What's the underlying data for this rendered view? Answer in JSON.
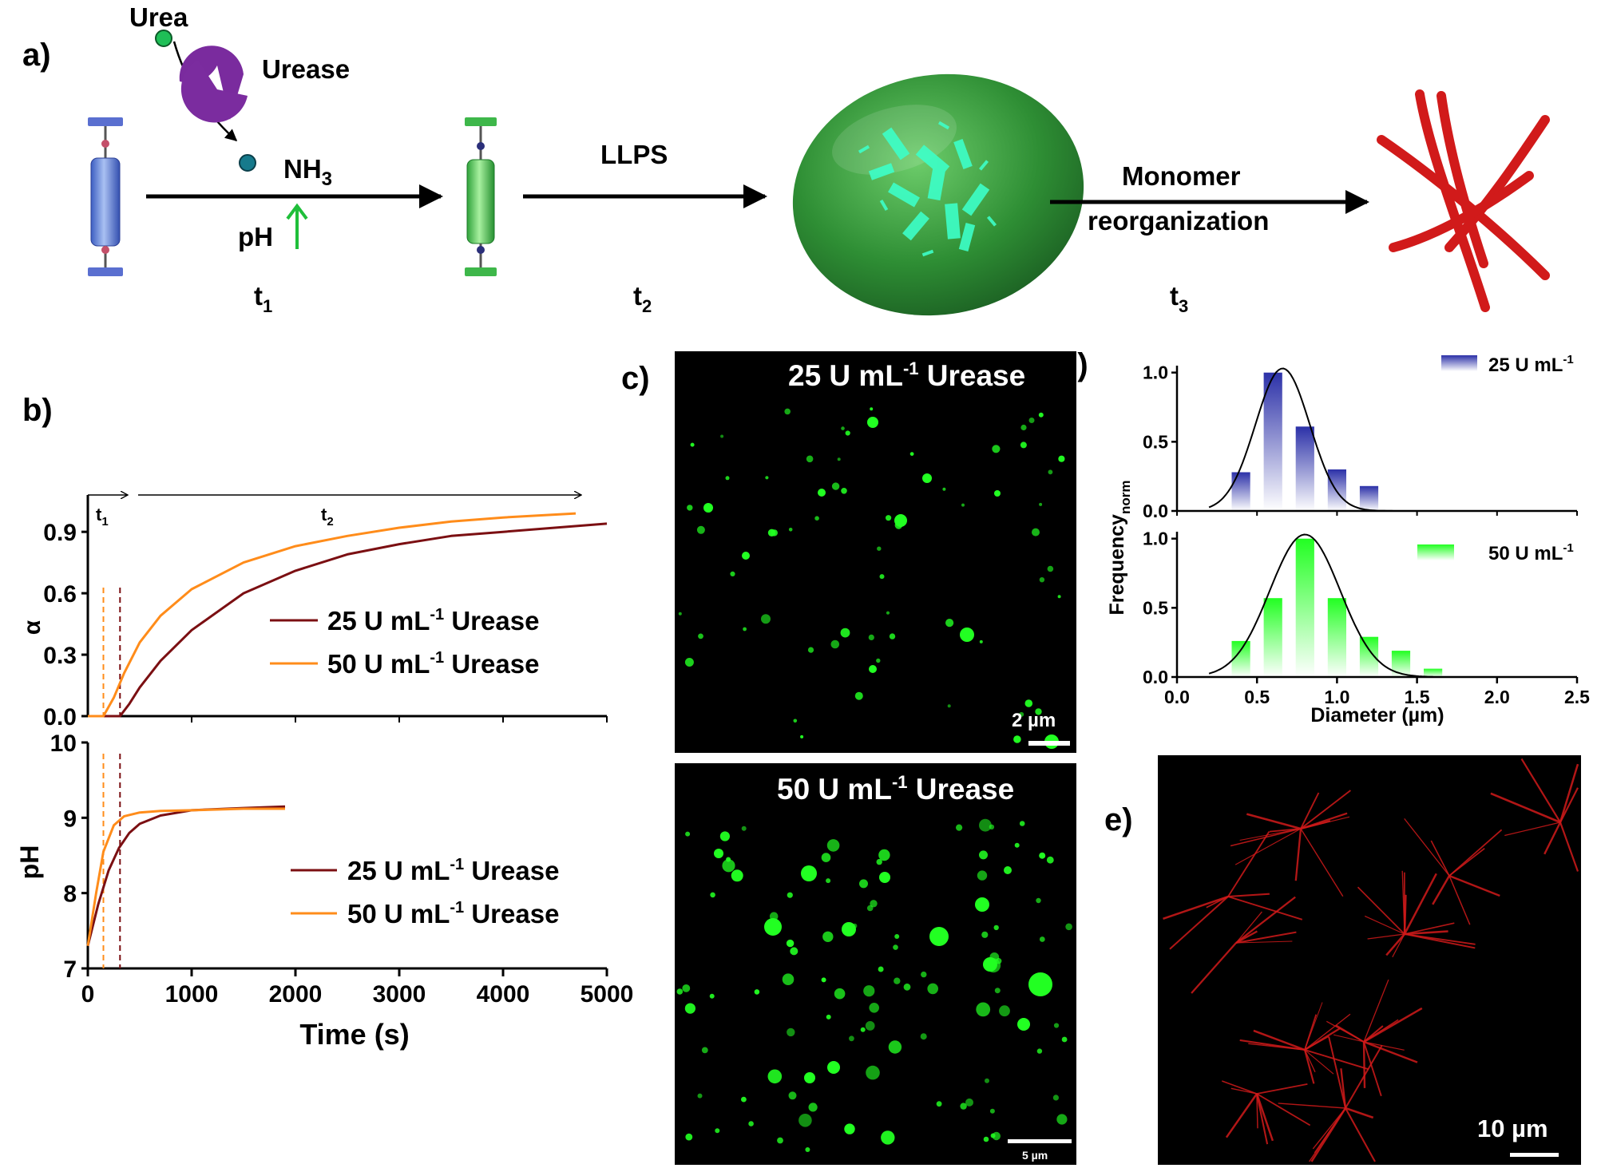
{
  "panel_labels": {
    "a": "a)",
    "b": "b)",
    "c": "c)",
    "d": "d)",
    "e": "e)"
  },
  "scheme": {
    "urea": "Urea",
    "urease": "Urease",
    "nh3_base": "NH",
    "nh3_sub": "3",
    "ph": "pH",
    "llps": "LLPS",
    "monomer": "Monomer",
    "reorganization": "reorganization",
    "t_letter": "t",
    "t1_sub": "1",
    "t2_sub": "2",
    "t3_sub": "3"
  },
  "colors": {
    "dark_red": "#7b0f12",
    "orange": "#ff8c1a",
    "blue": "#3a3fb0",
    "green": "#22ff22",
    "fiber_red": "#d11a1a"
  },
  "chart_data": [
    {
      "type": "line",
      "panel": "b-top",
      "xlim": [
        0,
        5000
      ],
      "ylim": [
        0,
        1.08
      ],
      "yticks": [
        "0.0",
        "0.3",
        "0.6",
        "0.9"
      ],
      "ylabel": "α",
      "phase_labels": {
        "t": "t",
        "t1_sub": "1",
        "t2_sub": "2"
      },
      "vlines": [
        150,
        310
      ],
      "series": [
        {
          "name_main": "25 U mL",
          "name_sup": "-1",
          "name_tail": " Urease",
          "color": "#7b0f12",
          "x": [
            0,
            310,
            400,
            500,
            700,
            1000,
            1500,
            2000,
            2500,
            3000,
            3500,
            4000,
            4500,
            5000
          ],
          "y": [
            0.0,
            0.0,
            0.06,
            0.14,
            0.27,
            0.42,
            0.6,
            0.71,
            0.79,
            0.84,
            0.88,
            0.9,
            0.92,
            0.94
          ]
        },
        {
          "name_main": "50 U mL",
          "name_sup": "-1",
          "name_tail": " Urease",
          "color": "#ff8c1a",
          "x": [
            0,
            150,
            250,
            350,
            500,
            700,
            1000,
            1500,
            2000,
            2500,
            3000,
            3500,
            4000,
            4700
          ],
          "y": [
            0.0,
            0.0,
            0.09,
            0.21,
            0.36,
            0.49,
            0.62,
            0.75,
            0.83,
            0.88,
            0.92,
            0.95,
            0.97,
            0.99
          ]
        }
      ]
    },
    {
      "type": "line",
      "panel": "b-bottom",
      "xlim": [
        0,
        5000
      ],
      "ylim": [
        7,
        10
      ],
      "xticks": [
        "0",
        "1000",
        "2000",
        "3000",
        "4000",
        "5000"
      ],
      "yticks": [
        "7",
        "8",
        "9",
        "10"
      ],
      "xlabel": "Time (s)",
      "ylabel": "pH",
      "vlines": [
        150,
        310
      ],
      "series": [
        {
          "name_main": "25 U mL",
          "name_sup": "-1",
          "name_tail": " Urease",
          "color": "#7b0f12",
          "x": [
            0,
            100,
            200,
            300,
            400,
            500,
            700,
            1000,
            1500,
            1900
          ],
          "y": [
            7.3,
            7.85,
            8.3,
            8.6,
            8.8,
            8.92,
            9.03,
            9.1,
            9.13,
            9.15
          ]
        },
        {
          "name_main": "50 U mL",
          "name_sup": "-1",
          "name_tail": " Urease",
          "color": "#ff8c1a",
          "x": [
            0,
            80,
            150,
            250,
            350,
            500,
            700,
            1000,
            1500,
            1900
          ],
          "y": [
            7.3,
            8.0,
            8.55,
            8.9,
            9.02,
            9.07,
            9.09,
            9.1,
            9.12,
            9.12
          ]
        }
      ]
    },
    {
      "type": "bar",
      "panel": "d-top",
      "xlim": [
        0,
        2.5
      ],
      "ylim": [
        0,
        1.05
      ],
      "yticks": [
        "0.0",
        "0.5",
        "1.0"
      ],
      "legend": {
        "main": "25 U mL",
        "sup": "-1"
      },
      "color": "#3a3fb0",
      "bins": [
        0.4,
        0.6,
        0.8,
        1.0,
        1.2
      ],
      "values": [
        0.28,
        1.0,
        0.61,
        0.3,
        0.18
      ],
      "fit_center": 0.66,
      "fit_sigma": 0.17,
      "fit_range": [
        0.2,
        1.4
      ]
    },
    {
      "type": "bar",
      "panel": "d-bottom",
      "xlim": [
        0,
        2.5
      ],
      "ylim": [
        0,
        1.05
      ],
      "xticks": [
        "0.0",
        "0.5",
        "1.0",
        "1.5",
        "2.0",
        "2.5"
      ],
      "yticks": [
        "0.0",
        "0.5",
        "1.0"
      ],
      "xlabel": "Diameter (µm)",
      "ylabel_main": "Frequency",
      "ylabel_sub": "norm",
      "legend": {
        "main": "50 U mL",
        "sup": "-1"
      },
      "color": "#22ff22",
      "bins": [
        0.4,
        0.6,
        0.8,
        1.0,
        1.2,
        1.4,
        1.6
      ],
      "values": [
        0.26,
        0.57,
        1.0,
        0.57,
        0.29,
        0.19,
        0.06
      ],
      "fit_center": 0.8,
      "fit_sigma": 0.22,
      "fit_range": [
        0.2,
        1.6
      ]
    }
  ],
  "micrographs": {
    "c_top": {
      "title_main": "25 U mL",
      "title_sup": "-1",
      "title_tail": " Urease",
      "scale": "2 µm"
    },
    "c_bottom": {
      "title_main": "50 U mL",
      "title_sup": "-1",
      "title_tail": " Urease",
      "scale": "5 µm"
    },
    "e": {
      "scale": "10 µm"
    }
  }
}
